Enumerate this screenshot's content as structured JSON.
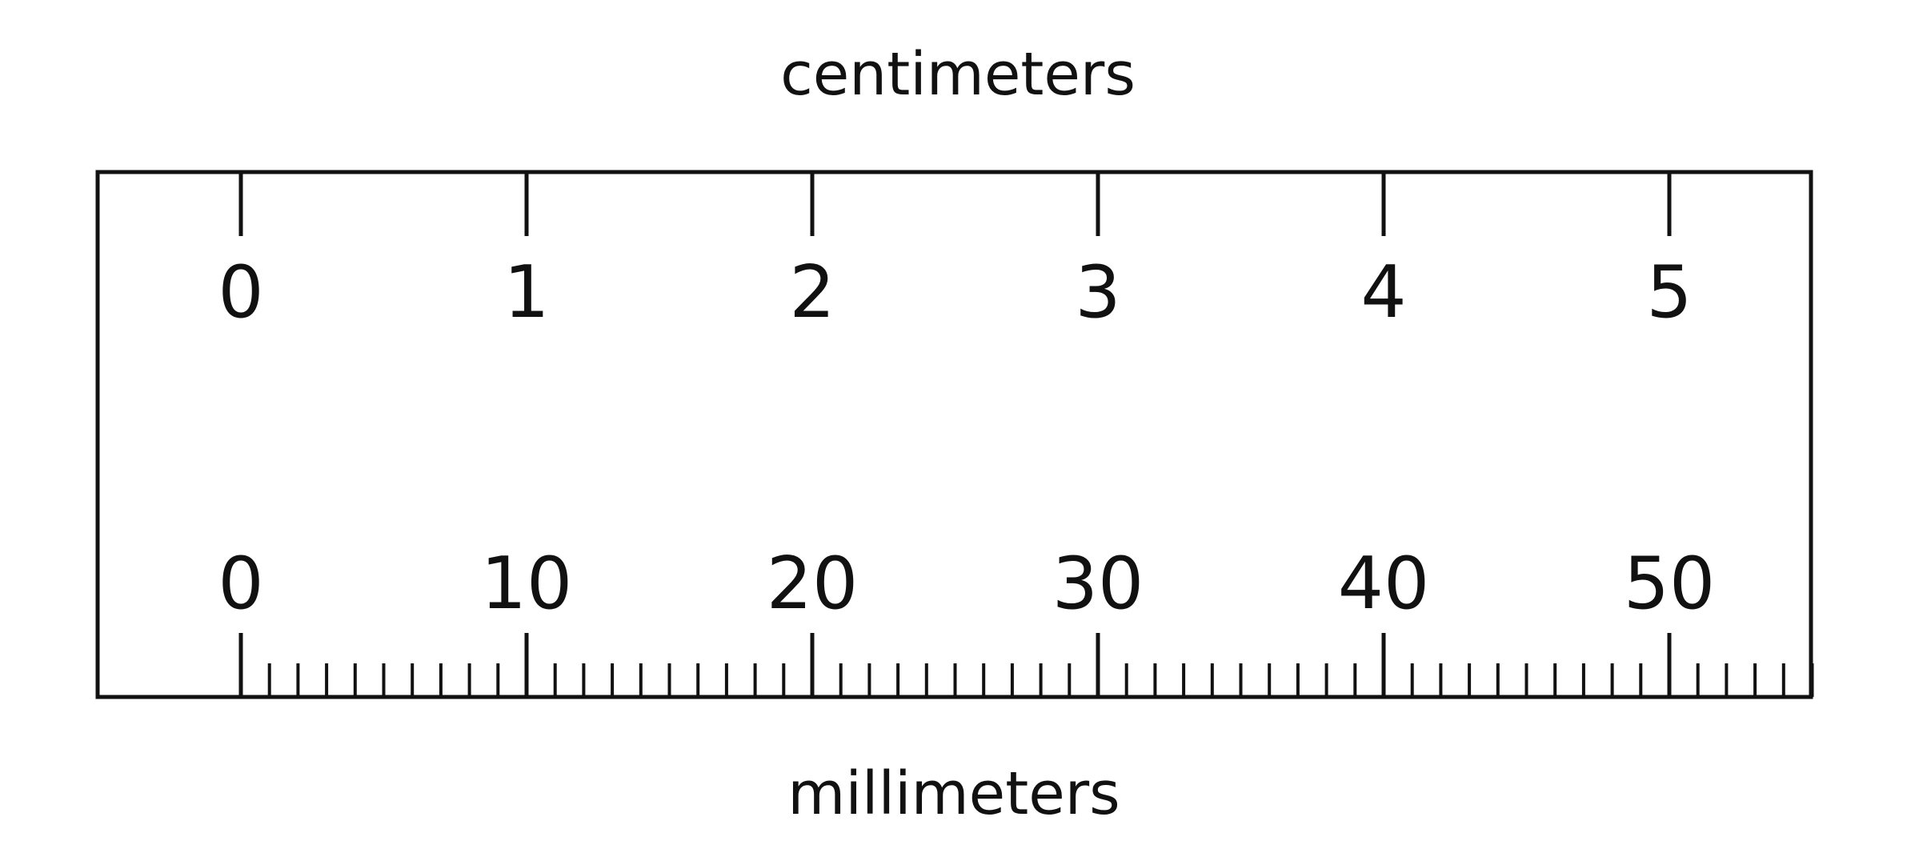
{
  "ruler": {
    "top_unit_label": "centimeters",
    "bottom_unit_label": "millimeters",
    "centimeter_labels": [
      "0",
      "1",
      "2",
      "3",
      "4",
      "5"
    ],
    "millimeter_labels": [
      "0",
      "10",
      "20",
      "30",
      "40",
      "50"
    ],
    "millimeter_tick_count": 55,
    "colors": {
      "line": "#111111",
      "background": "#ffffff"
    }
  }
}
